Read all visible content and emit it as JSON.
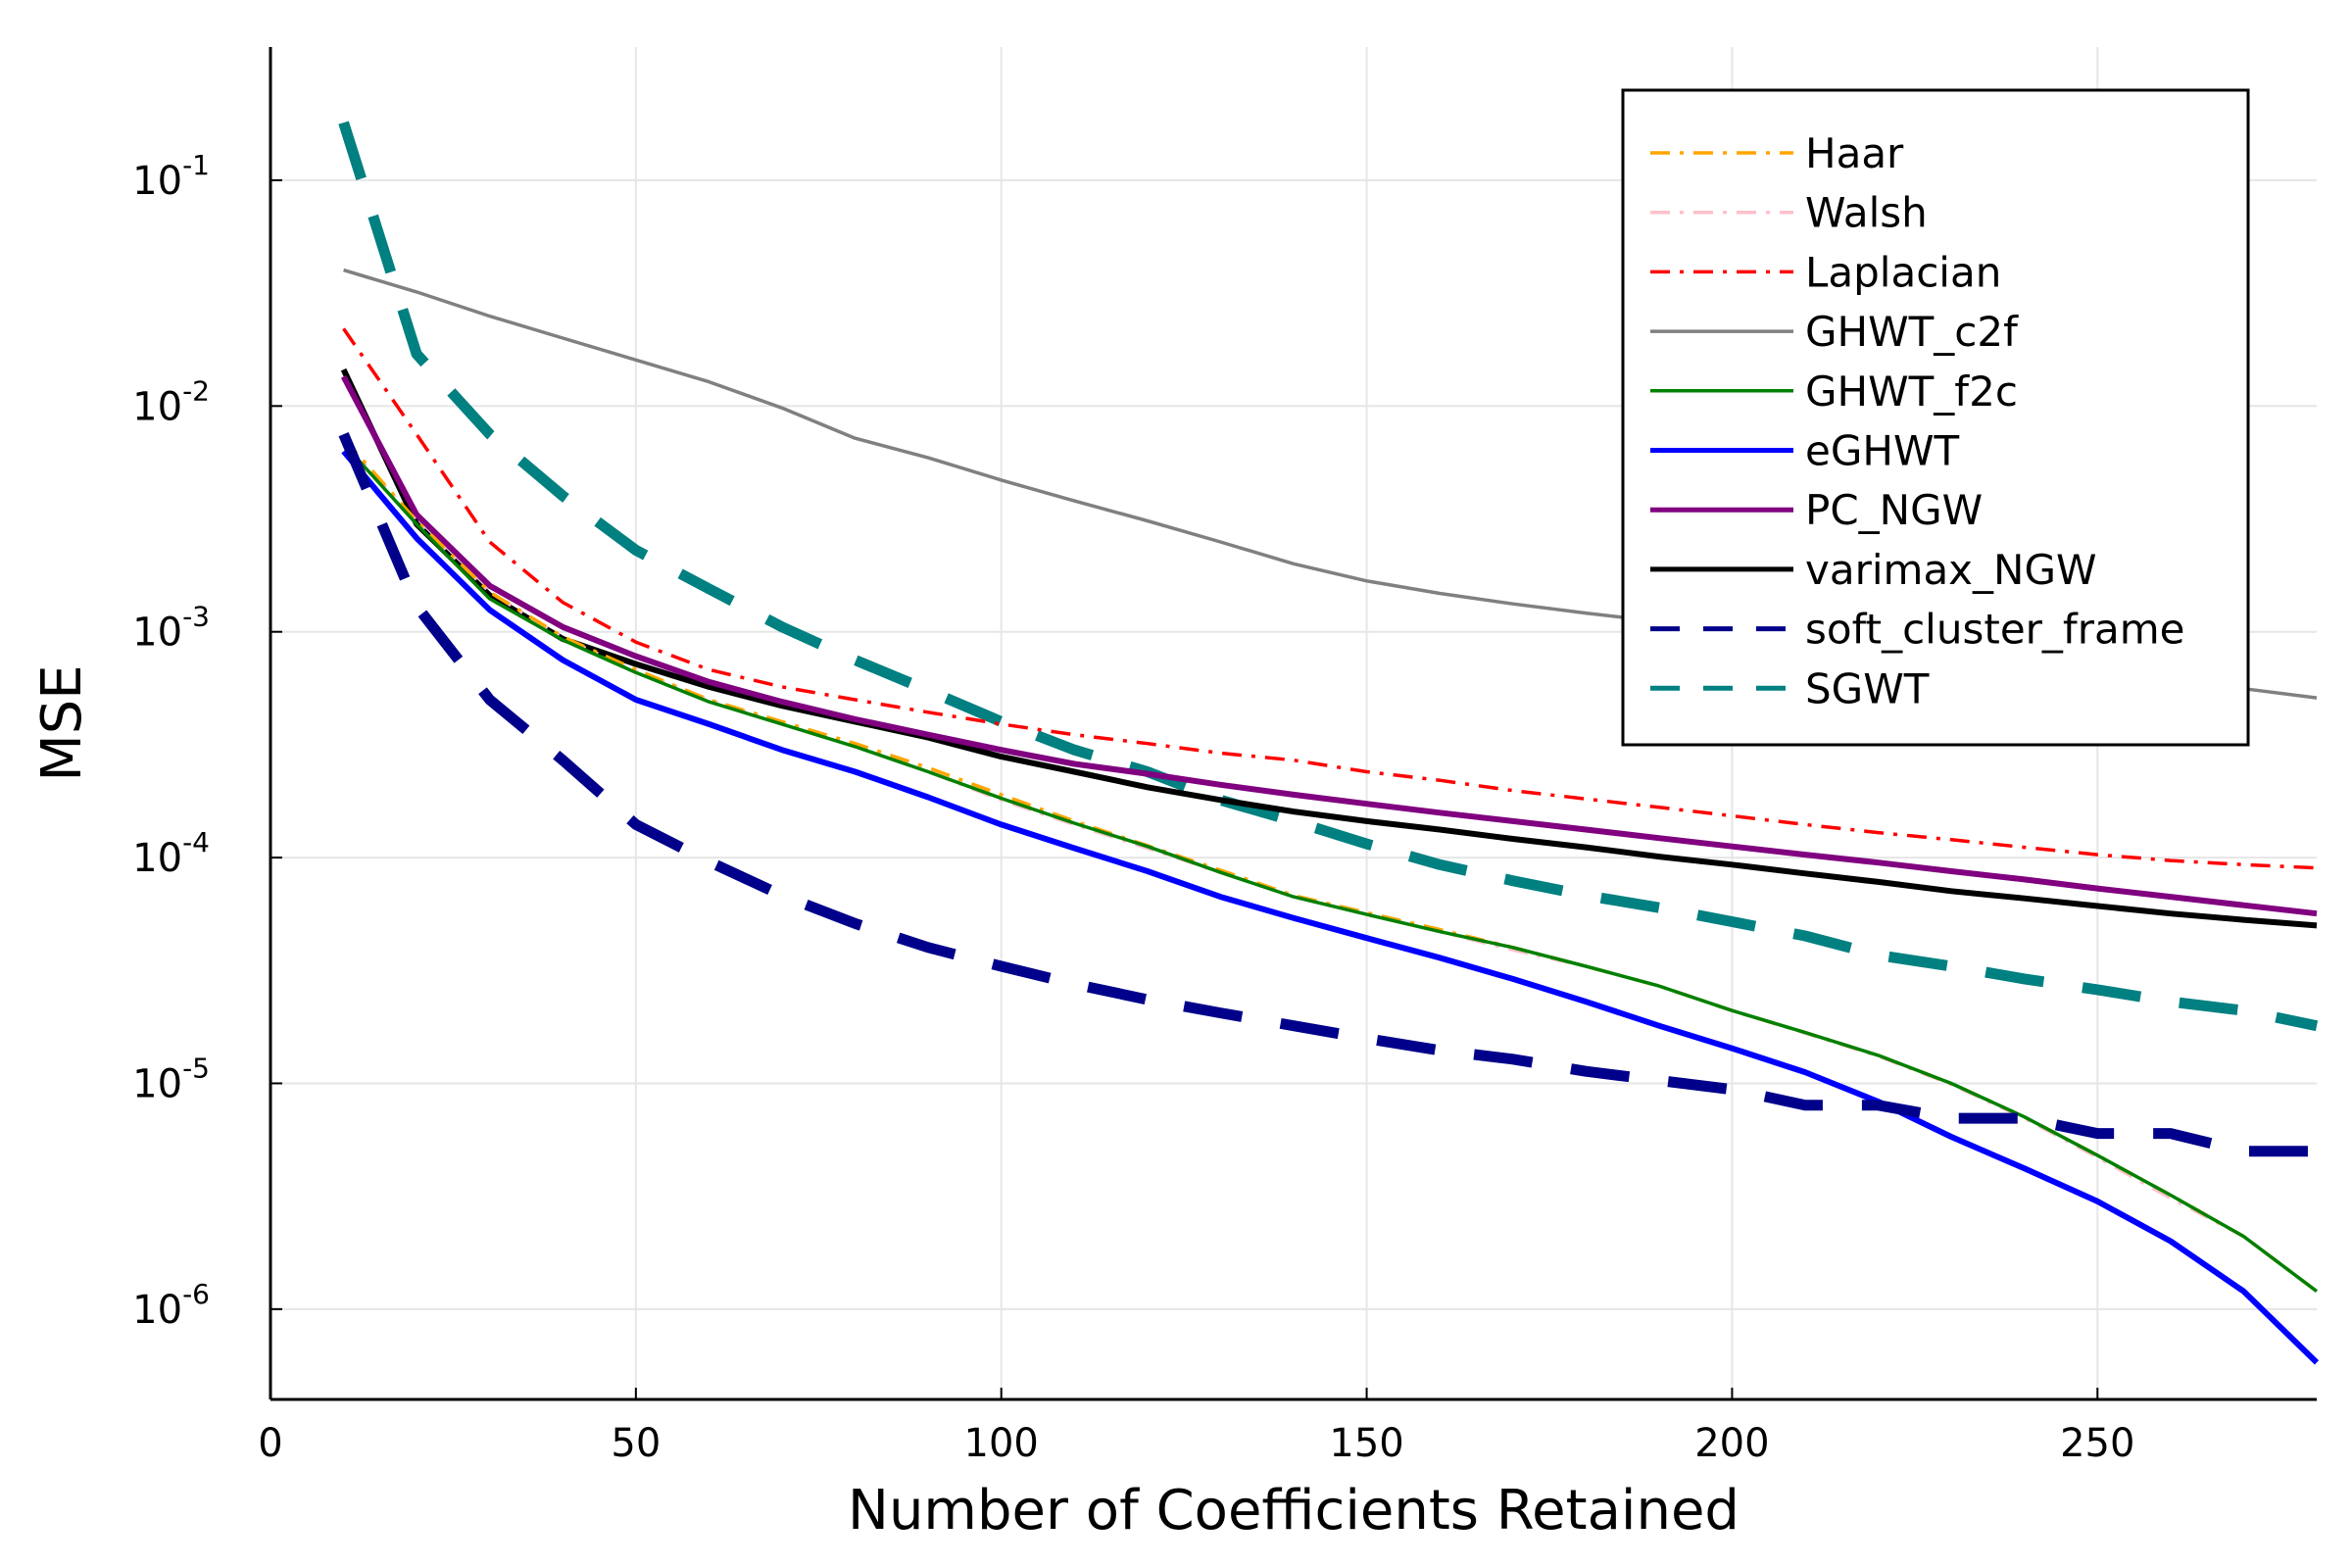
{
  "chart_data": {
    "type": "line",
    "xlabel": "Number of Coefficients Retained",
    "ylabel": "MSE",
    "xlim": [
      0,
      280
    ],
    "ylim_exponent": [
      -6.4,
      -0.41
    ],
    "yscale": "log10",
    "grid": true,
    "legend_position": "top-right",
    "x_ticks": [
      0,
      50,
      100,
      150,
      200,
      250
    ],
    "y_ticks": [
      {
        "base": "10",
        "exponent": "-1",
        "value": 0.1
      },
      {
        "base": "10",
        "exponent": "-2",
        "value": 0.01
      },
      {
        "base": "10",
        "exponent": "-3",
        "value": 0.001
      },
      {
        "base": "10",
        "exponent": "-4",
        "value": 0.0001
      },
      {
        "base": "10",
        "exponent": "-5",
        "value": 1e-05
      },
      {
        "base": "10",
        "exponent": "-6",
        "value": 1e-06
      }
    ],
    "series": [
      {
        "name": "Haar",
        "color": "#FFA500",
        "style": "dashdot",
        "x": [
          10,
          20,
          30,
          40,
          50,
          60,
          70,
          80,
          90,
          100,
          110,
          120,
          130,
          140,
          150,
          160,
          170,
          180,
          190,
          200,
          210,
          220,
          230,
          240,
          250,
          260,
          270,
          280
        ],
        "y": [
          0.0072,
          0.0031,
          0.0015,
          0.00095,
          0.00068,
          0.0005,
          0.0004,
          0.00032,
          0.00025,
          0.00019,
          0.000145,
          0.000113,
          8.8e-05,
          6.8e-05,
          5.7e-05,
          4.8e-05,
          4e-05,
          3.3e-05,
          2.7e-05,
          2.1e-05,
          1.68e-05,
          1.33e-05,
          1e-05,
          7.1e-06,
          4.8e-06,
          3.2e-06,
          2.1e-06,
          1.2e-06
        ]
      },
      {
        "name": "Walsh",
        "color": "#FFC0CB",
        "style": "dashdot",
        "x": [
          10,
          20,
          30,
          40,
          50,
          60,
          70,
          80,
          90,
          100,
          110,
          120,
          130,
          140,
          150,
          160,
          170,
          180,
          190,
          200,
          210,
          220,
          230,
          240,
          250,
          260,
          270,
          280
        ],
        "y": [
          0.007,
          0.0031,
          0.0015,
          0.00094,
          0.00067,
          0.0005,
          0.00039,
          0.00031,
          0.00024,
          0.00018,
          0.00014,
          0.00011,
          8.6e-05,
          6.7e-05,
          5.6e-05,
          4.7e-05,
          3.9e-05,
          3.3e-05,
          2.7e-05,
          2.1e-05,
          1.67e-05,
          1.32e-05,
          9.9e-06,
          7e-06,
          4.7e-06,
          3.1e-06,
          2.1e-06,
          1.2e-06
        ]
      },
      {
        "name": "Laplacian",
        "color": "#FF0000",
        "style": "dashdot",
        "x": [
          10,
          20,
          30,
          40,
          50,
          60,
          70,
          80,
          90,
          100,
          110,
          120,
          130,
          140,
          150,
          160,
          170,
          180,
          190,
          200,
          210,
          220,
          230,
          240,
          250,
          260,
          270,
          280
        ],
        "y": [
          0.022,
          0.0075,
          0.0025,
          0.00135,
          0.0009,
          0.00068,
          0.00057,
          0.0005,
          0.00044,
          0.00039,
          0.00035,
          0.00032,
          0.00029,
          0.00027,
          0.00024,
          0.00022,
          0.000198,
          0.000182,
          0.000167,
          0.000153,
          0.00014,
          0.000129,
          0.00012,
          0.000111,
          0.000103,
          9.7e-05,
          9.3e-05,
          9e-05
        ]
      },
      {
        "name": "GHWT_c2f",
        "color": "#808080",
        "style": "solid",
        "x": [
          10,
          20,
          30,
          40,
          50,
          60,
          70,
          80,
          90,
          100,
          110,
          120,
          130,
          140,
          150,
          160,
          170,
          180,
          190,
          200,
          210,
          220,
          230,
          240,
          250,
          260,
          270,
          280
        ],
        "y": [
          0.04,
          0.032,
          0.025,
          0.02,
          0.016,
          0.0128,
          0.0098,
          0.0072,
          0.0059,
          0.0047,
          0.0038,
          0.0031,
          0.0025,
          0.002,
          0.00168,
          0.00148,
          0.00133,
          0.00121,
          0.00111,
          0.001,
          0.00091,
          0.00083,
          0.00076,
          0.0007,
          0.00065,
          0.0006,
          0.00056,
          0.00051
        ]
      },
      {
        "name": "GHWT_f2c",
        "color": "#008000",
        "style": "solid",
        "x": [
          10,
          20,
          30,
          40,
          50,
          60,
          70,
          80,
          90,
          100,
          110,
          120,
          130,
          140,
          150,
          160,
          170,
          180,
          190,
          200,
          210,
          220,
          230,
          240,
          250,
          260,
          270,
          280
        ],
        "y": [
          0.0068,
          0.003,
          0.0014,
          0.00092,
          0.00066,
          0.00049,
          0.00039,
          0.00031,
          0.00024,
          0.000183,
          0.000142,
          0.000112,
          8.6e-05,
          6.7e-05,
          5.6e-05,
          4.7e-05,
          4e-05,
          3.3e-05,
          2.7e-05,
          2.1e-05,
          1.68e-05,
          1.33e-05,
          1e-05,
          7.1e-06,
          4.8e-06,
          3.2e-06,
          2.1e-06,
          1.2e-06
        ]
      },
      {
        "name": "eGHWT",
        "color": "#0000FF",
        "style": "solid",
        "x": [
          10,
          20,
          30,
          40,
          50,
          60,
          70,
          80,
          90,
          100,
          110,
          120,
          130,
          140,
          150,
          160,
          170,
          180,
          190,
          200,
          210,
          220,
          230,
          240,
          250,
          260,
          270,
          280
        ],
        "y": [
          0.0063,
          0.0026,
          0.00125,
          0.00075,
          0.0005,
          0.00039,
          0.0003,
          0.00024,
          0.000185,
          0.00014,
          0.00011,
          8.7e-05,
          6.7e-05,
          5.4e-05,
          4.4e-05,
          3.6e-05,
          2.9e-05,
          2.3e-05,
          1.8e-05,
          1.43e-05,
          1.12e-05,
          8.3e-06,
          5.8e-06,
          4.2e-06,
          3e-06,
          2e-06,
          1.2e-06,
          5.8e-07
        ]
      },
      {
        "name": "PC_NGW",
        "color": "#800080",
        "style": "solid",
        "x": [
          10,
          20,
          30,
          40,
          50,
          60,
          70,
          80,
          90,
          100,
          110,
          120,
          130,
          140,
          150,
          160,
          170,
          180,
          190,
          200,
          210,
          220,
          230,
          240,
          250,
          260,
          270,
          280
        ],
        "y": [
          0.0135,
          0.0033,
          0.0016,
          0.00105,
          0.00078,
          0.0006,
          0.00049,
          0.00041,
          0.00035,
          0.0003,
          0.00026,
          0.000235,
          0.00021,
          0.00019,
          0.000173,
          0.000158,
          0.000145,
          0.000133,
          0.000122,
          0.000112,
          0.000103,
          9.5e-05,
          8.7e-05,
          8e-05,
          7.3e-05,
          6.7e-05,
          6.15e-05,
          5.65e-05
        ]
      },
      {
        "name": "varimax_NGW",
        "color": "#000000",
        "style": "solid",
        "x": [
          10,
          20,
          30,
          40,
          50,
          60,
          70,
          80,
          90,
          100,
          110,
          120,
          130,
          140,
          150,
          160,
          170,
          180,
          190,
          200,
          210,
          220,
          230,
          240,
          250,
          260,
          270,
          280
        ],
        "y": [
          0.0145,
          0.003,
          0.00145,
          0.00093,
          0.00072,
          0.00057,
          0.00047,
          0.0004,
          0.00034,
          0.00028,
          0.00024,
          0.000205,
          0.00018,
          0.00016,
          0.000145,
          0.000133,
          0.000121,
          0.000111,
          0.000101,
          9.3e-05,
          8.5e-05,
          7.8e-05,
          7.1e-05,
          6.6e-05,
          6.1e-05,
          5.65e-05,
          5.3e-05,
          5e-05
        ]
      },
      {
        "name": "soft_cluster_frame",
        "color": "#00008B",
        "style": "dashed",
        "x": [
          10,
          20,
          30,
          40,
          50,
          60,
          70,
          80,
          90,
          100,
          110,
          120,
          130,
          140,
          150,
          160,
          170,
          180,
          190,
          200,
          210,
          220,
          230,
          240,
          250,
          260,
          270,
          280
        ],
        "y": [
          0.0075,
          0.0013,
          0.0005,
          0.00027,
          0.00014,
          9.6e-05,
          6.8e-05,
          5.1e-05,
          4e-05,
          3.3e-05,
          2.75e-05,
          2.35e-05,
          2.05e-05,
          1.8e-05,
          1.58e-05,
          1.4e-05,
          1.28e-05,
          1.13e-05,
          1.03e-05,
          9.4e-06,
          8e-06,
          8e-06,
          7e-06,
          7e-06,
          6e-06,
          6e-06,
          5e-06,
          5e-06
        ]
      },
      {
        "name": "SGWT",
        "color": "#008080",
        "style": "dashed",
        "x": [
          10,
          20,
          30,
          40,
          50,
          60,
          70,
          80,
          90,
          100,
          110,
          120,
          130,
          140,
          150,
          160,
          170,
          180,
          190,
          200,
          210,
          220,
          230,
          240,
          250,
          260,
          270,
          280
        ],
        "y": [
          0.18,
          0.017,
          0.0075,
          0.004,
          0.0023,
          0.00155,
          0.00105,
          0.00075,
          0.00055,
          0.0004,
          0.0003,
          0.00024,
          0.00018,
          0.000145,
          0.000115,
          9.3e-05,
          7.9e-05,
          6.8e-05,
          6e-05,
          5.2e-05,
          4.5e-05,
          3.7e-05,
          3.3e-05,
          2.9e-05,
          2.6e-05,
          2.3e-05,
          2.1e-05,
          1.8e-05
        ]
      }
    ]
  }
}
